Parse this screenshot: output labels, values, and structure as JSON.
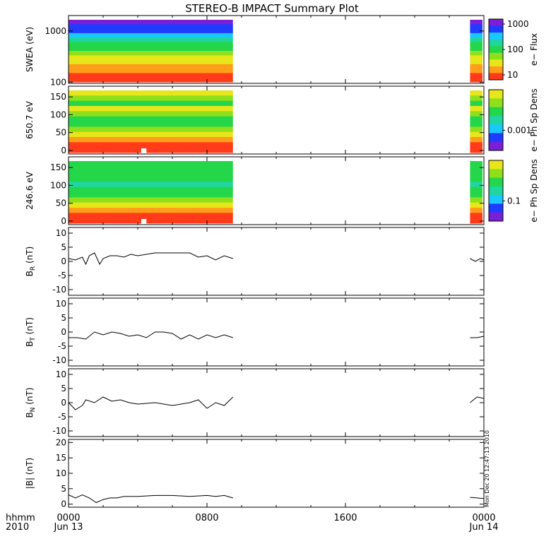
{
  "title": "STEREO-B IMPACT Summary Plot",
  "footer": {
    "xlabel_top": "hhmm",
    "xlabel_bottom": "2010"
  },
  "stamp": "Mon Dec 20 12:47:13 2010",
  "x_axis": {
    "range_hours": [
      0,
      24
    ],
    "ticks": [
      {
        "hour": 0,
        "label": "0000",
        "sublabel": "Jun 13"
      },
      {
        "hour": 8,
        "label": "0800",
        "sublabel": ""
      },
      {
        "hour": 16,
        "label": "1600",
        "sublabel": ""
      },
      {
        "hour": 24,
        "label": "0000",
        "sublabel": "Jun 14"
      }
    ]
  },
  "colors": {
    "axis": "#000000",
    "line": "#000000",
    "background": "#ffffff"
  },
  "chart_data": [
    {
      "type": "heatmap",
      "ylabel": "SWEA (eV)",
      "yscale": "log",
      "ylim": [
        95,
        2000
      ],
      "yticks": [
        {
          "value": 100,
          "label": "100"
        },
        {
          "value": 1000,
          "label": "1000"
        }
      ],
      "data_hours": [
        0,
        9.5
      ],
      "trailing_hours": [
        23.2,
        24
      ],
      "colorbar": {
        "label": "e− Flux",
        "scale": "log",
        "ticks": [
          "1000",
          "100",
          "10"
        ]
      },
      "rows_top_to_bottom": [
        "purple",
        "blue",
        "blue",
        "cyan",
        "teal",
        "green",
        "green",
        "lime",
        "yellow",
        "yellow",
        "orange",
        "orange",
        "red",
        "red"
      ]
    },
    {
      "type": "heatmap",
      "ylabel": "650.7 eV",
      "ylim": [
        -10,
        180
      ],
      "yticks": [
        {
          "value": 0,
          "label": "0"
        },
        {
          "value": 50,
          "label": "50"
        },
        {
          "value": 100,
          "label": "100"
        },
        {
          "value": 150,
          "label": "150"
        }
      ],
      "data_hours": [
        0,
        9.5
      ],
      "trailing_hours": [
        23.2,
        24
      ],
      "colorbar": {
        "label": "e− Ph Sp Dens",
        "scale": "log",
        "ticks": [
          "0.001"
        ]
      },
      "rows_top_to_bottom": [
        "yellow",
        "lime",
        "green",
        "yellow",
        "lime",
        "green",
        "green",
        "lime",
        "yellow",
        "orange",
        "red",
        "red"
      ],
      "gap_hours": [
        4.2,
        4.5
      ]
    },
    {
      "type": "heatmap",
      "ylabel": "246.6 eV",
      "ylim": [
        -10,
        180
      ],
      "yticks": [
        {
          "value": 0,
          "label": "0"
        },
        {
          "value": 50,
          "label": "50"
        },
        {
          "value": 100,
          "label": "100"
        },
        {
          "value": 150,
          "label": "150"
        }
      ],
      "data_hours": [
        0,
        9.5
      ],
      "trailing_hours": [
        23.2,
        24
      ],
      "colorbar": {
        "label": "e− Ph Sp Dens",
        "scale": "log",
        "ticks": [
          "0.1"
        ]
      },
      "rows_top_to_bottom": [
        "green",
        "green",
        "green",
        "green",
        "teal",
        "green",
        "green",
        "lime",
        "yellow",
        "orange",
        "red",
        "red"
      ],
      "gap_hours": [
        4.2,
        4.5
      ]
    },
    {
      "type": "line",
      "ylabel": "B_R (nT)",
      "ylabel_main": "B",
      "ylabel_sub": "R",
      "ylabel_unit": "(nT)",
      "ylim": [
        -12,
        12
      ],
      "yticks": [
        -10,
        -5,
        0,
        5,
        10
      ],
      "x": [
        0,
        0.4,
        0.8,
        1.0,
        1.2,
        1.5,
        1.8,
        2.0,
        2.4,
        2.8,
        3.2,
        3.6,
        4.0,
        5.0,
        6.0,
        7.0,
        7.5,
        8.0,
        8.5,
        9.0,
        9.5
      ],
      "y": [
        1,
        0.5,
        1.5,
        -1,
        2,
        3,
        -1,
        1,
        2,
        2,
        1.5,
        2.5,
        2,
        3,
        3,
        3,
        1.5,
        2,
        0.5,
        2,
        1
      ],
      "trailing_x": [
        23.2,
        23.5,
        23.8,
        24
      ],
      "trailing_y": [
        1,
        0,
        1,
        0.5
      ]
    },
    {
      "type": "line",
      "ylabel": "B_T (nT)",
      "ylabel_main": "B",
      "ylabel_sub": "T",
      "ylabel_unit": "(nT)",
      "ylim": [
        -12,
        12
      ],
      "yticks": [
        -10,
        -5,
        0,
        5,
        10
      ],
      "x": [
        0,
        0.5,
        1.0,
        1.5,
        2.0,
        2.5,
        3.0,
        3.5,
        4.0,
        4.5,
        5.0,
        5.5,
        6.0,
        6.5,
        7.0,
        7.5,
        8.0,
        8.5,
        9.0,
        9.5
      ],
      "y": [
        -2,
        -2,
        -2.5,
        0,
        -1,
        0,
        -0.5,
        -1.5,
        -1,
        -2,
        0,
        0,
        -0.5,
        -2.5,
        -1,
        -2.5,
        -1,
        -2,
        -1,
        -2
      ],
      "trailing_x": [
        23.2,
        23.6,
        24
      ],
      "trailing_y": [
        -2,
        -2,
        -1.5
      ]
    },
    {
      "type": "line",
      "ylabel": "B_N (nT)",
      "ylabel_main": "B",
      "ylabel_sub": "N",
      "ylabel_unit": "(nT)",
      "ylim": [
        -12,
        12
      ],
      "yticks": [
        -10,
        -5,
        0,
        5,
        10
      ],
      "x": [
        0,
        0.4,
        0.8,
        1.0,
        1.5,
        2.0,
        2.5,
        3.0,
        3.5,
        4.0,
        5.0,
        6.0,
        7.0,
        7.5,
        8.0,
        8.5,
        9.0,
        9.5
      ],
      "y": [
        0,
        -2.5,
        -1,
        1,
        0,
        2,
        0.5,
        1,
        0,
        -0.5,
        0,
        -1,
        0,
        1,
        -2,
        0,
        -1,
        2
      ],
      "trailing_x": [
        23.2,
        23.6,
        24
      ],
      "trailing_y": [
        0,
        2,
        1.5
      ]
    },
    {
      "type": "line",
      "ylabel": "|B| (nT)",
      "ylabel_main": "|B|",
      "ylabel_sub": "",
      "ylabel_unit": "(nT)",
      "ylim": [
        -1,
        21
      ],
      "yticks": [
        0,
        5,
        10,
        15,
        20
      ],
      "x": [
        0,
        0.4,
        0.8,
        1.2,
        1.6,
        2.0,
        2.4,
        2.8,
        3.2,
        4.0,
        5.0,
        6.0,
        7.0,
        8.0,
        8.5,
        9.0,
        9.5
      ],
      "y": [
        3,
        2,
        3,
        2,
        0.5,
        1.5,
        2,
        2,
        2.5,
        2.5,
        2.8,
        2.8,
        2.5,
        2.8,
        2.5,
        2.8,
        2
      ],
      "trailing_x": [
        23.2,
        23.6,
        24
      ],
      "trailing_y": [
        2.2,
        2,
        1.8
      ]
    }
  ]
}
